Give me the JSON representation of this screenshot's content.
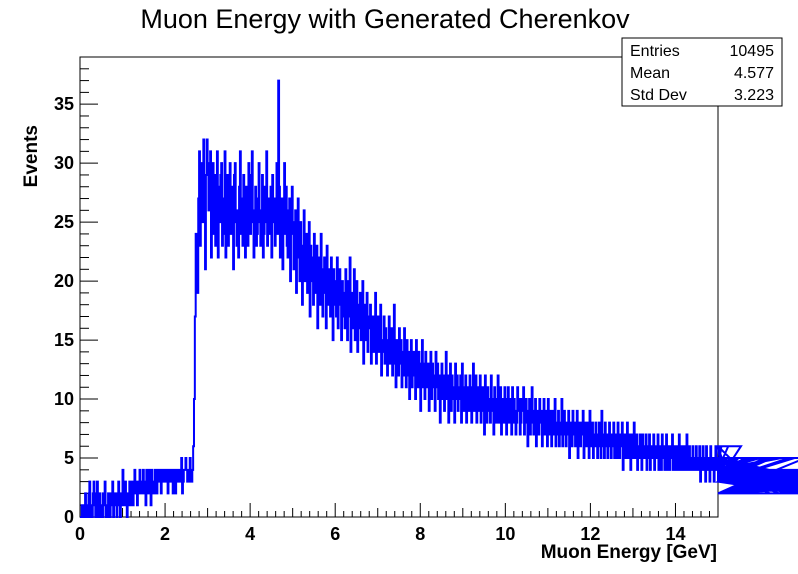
{
  "chart_data": {
    "type": "bar",
    "histogram_style": "step",
    "title": "Muon Energy with Generated Cherenkov",
    "xlabel": "Muon Energy [GeV]",
    "ylabel": "Events",
    "xlim": [
      0,
      15
    ],
    "ylim": [
      0,
      39
    ],
    "xticks": [
      0,
      2,
      4,
      6,
      8,
      10,
      12,
      14
    ],
    "yticks": [
      0,
      5,
      10,
      15,
      20,
      25,
      30,
      35
    ],
    "grid": false,
    "line_color": "#0000ff",
    "stats_box": {
      "placement": "top-right",
      "rows": [
        {
          "label": "Entries",
          "value": "10495"
        },
        {
          "label": "Mean",
          "value": "4.577"
        },
        {
          "label": "Std Dev",
          "value": "3.223"
        }
      ]
    },
    "bin_width": 0.02,
    "values": [
      0,
      0,
      1,
      0,
      0,
      1,
      2,
      0,
      1,
      0,
      2,
      3,
      0,
      1,
      0,
      2,
      3,
      1,
      0,
      2,
      3,
      0,
      1,
      2,
      0,
      1,
      0,
      2,
      1,
      3,
      0,
      1,
      0,
      2,
      1,
      0,
      2,
      1,
      3,
      0,
      1,
      2,
      1,
      0,
      2,
      3,
      1,
      0,
      2,
      1,
      4,
      2,
      1,
      3,
      2,
      0,
      1,
      2,
      3,
      1,
      2,
      3,
      1,
      2,
      4,
      3,
      2,
      1,
      3,
      2,
      4,
      3,
      2,
      3,
      4,
      2,
      3,
      1,
      4,
      3,
      2,
      4,
      3,
      1,
      4,
      2,
      3,
      2,
      4,
      3,
      2,
      4,
      3,
      4,
      3,
      2,
      4,
      4,
      3,
      4,
      3,
      4,
      3,
      2,
      4,
      3,
      4,
      3,
      4,
      2,
      3,
      4,
      2,
      4,
      3,
      3,
      4,
      3,
      4,
      5,
      2,
      3,
      4,
      4,
      5,
      4,
      3,
      4,
      3,
      5,
      4,
      3,
      4,
      6,
      10,
      17,
      24,
      22,
      19,
      27,
      31,
      23,
      28,
      30,
      25,
      32,
      27,
      21,
      29,
      32,
      30,
      26,
      28,
      31,
      22,
      27,
      30,
      24,
      29,
      23,
      26,
      31,
      22,
      28,
      25,
      29,
      30,
      23,
      27,
      24,
      31,
      22,
      26,
      29,
      23,
      25,
      30,
      24,
      28,
      27,
      21,
      29,
      30,
      25,
      23,
      26,
      22,
      28,
      31,
      24,
      27,
      23,
      29,
      25,
      22,
      28,
      26,
      23,
      30,
      27,
      24,
      29,
      31,
      25,
      22,
      26,
      28,
      23,
      24,
      27,
      30,
      25,
      23,
      26,
      29,
      22,
      24,
      28,
      25,
      31,
      23,
      27,
      26,
      24,
      28,
      22,
      29,
      25,
      27,
      23,
      26,
      30,
      24,
      37,
      28,
      22,
      25,
      27,
      21,
      26,
      30,
      24,
      28,
      23,
      22,
      26,
      27,
      20,
      24,
      28,
      25,
      21,
      23,
      26,
      19,
      22,
      27,
      24,
      20,
      25,
      21,
      18,
      23,
      26,
      20,
      22,
      24,
      19,
      21,
      25,
      17,
      23,
      20,
      22,
      18,
      24,
      21,
      19,
      23,
      16,
      22,
      20,
      18,
      24,
      21,
      17,
      20,
      22,
      19,
      16,
      23,
      18,
      21,
      20,
      17,
      22,
      19,
      15,
      21,
      18,
      20,
      17,
      22,
      16,
      19,
      21,
      18,
      15,
      20,
      17,
      19,
      16,
      21,
      18,
      15,
      20,
      17,
      22,
      14,
      19,
      16,
      18,
      21,
      15,
      17,
      20,
      14,
      18,
      16,
      19,
      15,
      17,
      20,
      13,
      18,
      16,
      15,
      19,
      14,
      17,
      16,
      18,
      13,
      15,
      17,
      14,
      16,
      19,
      13,
      15,
      17,
      14,
      16,
      18,
      12,
      15,
      14,
      17,
      13,
      16,
      15,
      12,
      14,
      17,
      13,
      15,
      16,
      12,
      14,
      18,
      13,
      11,
      15,
      14,
      12,
      16,
      13,
      15,
      11,
      14,
      12,
      16,
      13,
      11,
      15,
      12,
      14,
      10,
      13,
      15,
      11,
      12,
      14,
      13,
      10,
      15,
      12,
      11,
      14,
      13,
      9,
      12,
      15,
      11,
      13,
      10,
      14,
      12,
      11,
      13,
      9,
      12,
      14,
      10,
      13,
      11,
      12,
      9,
      14,
      11,
      13,
      10,
      12,
      8,
      11,
      13,
      10,
      12,
      9,
      11,
      14,
      10,
      12,
      8,
      11,
      13,
      9,
      12,
      10,
      11,
      8,
      13,
      10,
      12,
      9,
      11,
      10,
      12,
      8,
      13,
      10,
      9,
      11,
      12,
      8,
      10,
      11,
      9,
      12,
      10,
      8,
      11,
      13,
      9,
      10,
      12,
      8,
      11,
      9,
      10,
      12,
      8,
      10,
      11,
      9,
      7,
      12,
      10,
      8,
      11,
      9,
      10,
      8,
      12,
      9,
      10,
      7,
      11,
      9,
      8,
      10,
      12,
      8,
      9,
      11,
      7,
      10,
      9,
      8,
      11,
      10,
      7,
      9,
      11,
      8,
      10,
      9,
      7,
      11,
      8,
      10,
      9,
      7,
      8,
      11,
      9,
      10,
      7,
      8,
      10,
      9,
      11,
      7,
      8,
      10,
      9,
      6,
      8,
      10,
      7,
      9,
      11,
      8,
      7,
      9,
      10,
      6,
      8,
      9,
      7,
      10,
      8,
      9,
      6,
      8,
      10,
      7,
      9,
      8,
      6,
      10,
      7,
      9,
      8,
      6,
      9,
      7,
      8,
      10,
      6,
      8,
      7,
      9,
      6,
      8,
      7,
      10,
      6,
      8,
      9,
      7,
      6,
      8,
      7,
      9,
      5,
      8,
      7,
      6,
      9,
      7,
      8,
      6,
      7,
      9,
      5,
      8,
      7,
      6,
      8,
      7,
      9,
      5,
      7,
      8,
      6,
      7,
      8,
      5,
      9,
      6,
      7,
      8,
      5,
      7,
      6,
      8,
      7,
      5,
      6,
      8,
      7,
      5,
      9,
      6,
      7,
      5,
      8,
      6,
      7,
      5,
      6,
      8,
      7,
      5,
      6,
      7,
      8,
      5,
      6,
      7,
      5,
      8,
      6,
      5,
      7,
      6,
      8,
      4,
      6,
      7,
      5,
      6,
      8,
      5,
      7,
      6,
      4,
      7,
      6,
      5,
      8,
      6,
      5,
      7,
      4,
      6,
      5,
      7,
      6,
      4,
      7,
      5,
      6,
      5,
      7,
      4,
      6,
      5,
      7,
      4,
      6,
      5,
      6,
      7,
      4,
      5,
      6,
      5,
      7,
      4,
      6,
      5,
      4,
      7,
      5,
      6,
      4,
      5,
      7,
      4,
      6,
      5,
      4,
      6,
      5,
      7,
      4,
      5,
      6,
      4,
      5,
      6,
      4,
      7,
      5,
      4,
      6,
      5,
      4,
      6,
      5,
      4,
      7,
      4,
      5,
      6,
      4,
      5,
      4,
      6,
      5,
      4,
      5,
      6,
      4,
      5,
      4,
      6,
      3,
      5,
      4,
      6,
      4,
      5,
      3,
      6,
      4,
      5,
      4,
      3,
      6,
      5,
      4,
      5,
      3,
      4,
      6,
      4,
      5,
      3,
      4,
      5,
      4,
      6,
      3,
      4,
      5,
      4,
      3,
      5,
      4,
      6,
      3,
      4,
      5,
      3,
      4,
      5,
      4,
      3,
      5,
      4,
      3,
      5,
      4,
      3,
      6,
      4,
      3,
      5,
      4,
      3,
      4,
      5,
      3,
      4,
      5,
      3,
      4,
      3,
      5,
      4,
      3,
      4,
      5,
      3,
      4,
      3,
      4,
      5,
      3,
      4,
      3,
      5,
      4,
      3,
      4,
      3,
      5,
      4,
      2,
      4,
      3,
      5,
      3,
      4,
      3,
      4,
      5,
      3,
      4,
      2,
      3,
      4,
      5,
      3,
      4,
      3,
      4,
      2,
      4,
      3,
      5,
      3,
      4,
      2,
      3,
      4,
      3,
      5,
      3,
      2,
      4,
      3,
      4,
      3,
      2,
      4,
      3,
      4,
      3,
      2,
      5,
      3,
      4,
      2,
      3,
      4,
      3,
      2,
      4,
      3,
      4,
      2,
      3,
      4,
      3,
      2,
      4,
      3,
      2,
      4,
      3,
      4,
      2,
      3,
      3,
      4,
      2,
      3,
      4,
      2,
      3,
      4,
      3,
      2,
      3,
      4,
      2,
      3,
      3,
      4,
      2,
      3,
      2,
      4,
      3,
      2,
      3,
      4,
      2,
      3,
      2,
      3,
      4,
      2,
      3,
      2,
      3,
      4,
      2,
      3,
      2,
      3,
      2,
      4,
      3,
      2,
      3,
      2,
      3,
      4,
      2,
      3,
      2,
      3,
      2,
      3,
      4,
      2,
      3,
      2,
      3,
      2,
      3,
      2,
      4,
      2,
      3,
      2,
      3,
      2,
      3,
      2,
      3,
      4,
      2,
      3,
      2,
      3,
      2,
      3,
      2,
      2,
      3,
      4,
      2,
      3,
      2,
      3,
      2,
      3,
      2,
      3,
      2,
      3,
      4,
      2,
      2,
      3,
      2,
      3,
      2,
      3,
      2,
      2,
      3,
      2,
      4,
      2,
      3,
      2,
      2,
      3,
      2,
      3,
      2,
      2,
      3,
      2,
      3,
      4,
      2,
      2,
      3,
      2,
      3,
      2,
      2,
      3,
      2,
      3,
      2,
      2,
      3,
      2,
      2,
      3,
      4,
      2,
      2,
      3,
      2,
      2,
      3,
      2,
      2,
      3,
      2,
      2,
      3,
      2,
      3,
      2,
      2,
      4
    ]
  }
}
